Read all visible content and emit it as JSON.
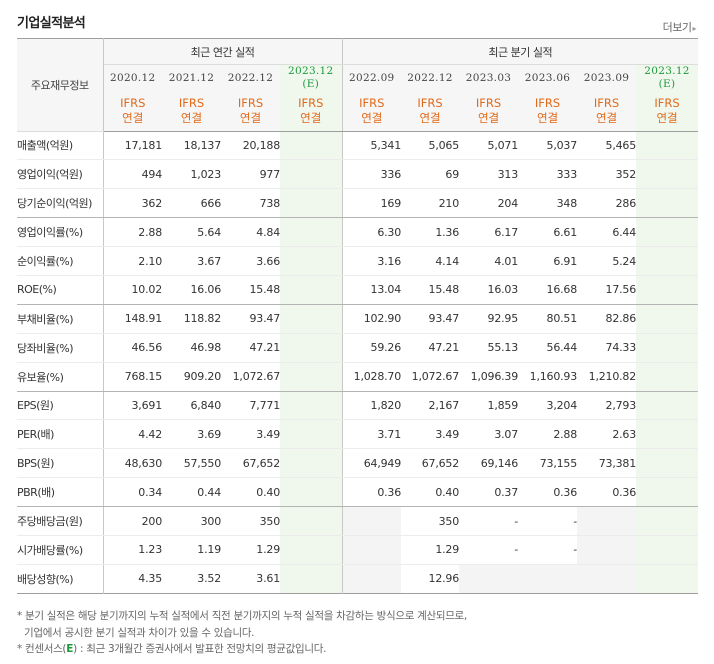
{
  "title": "기업실적분석",
  "more": {
    "label": "더보기",
    "icon": "chevron-right-icon"
  },
  "corner_label": "주요재무정보",
  "annual_group": "최근 연간 실적",
  "quarter_group": "최근 분기 실적",
  "periods": [
    {
      "date": "2020.12",
      "estimate": false
    },
    {
      "date": "2021.12",
      "estimate": false
    },
    {
      "date": "2022.12",
      "estimate": false
    },
    {
      "date": "2023.12",
      "estimate": true,
      "estimate_label": "(E)"
    },
    {
      "date": "2022.09",
      "estimate": false
    },
    {
      "date": "2022.12",
      "estimate": false
    },
    {
      "date": "2023.03",
      "estimate": false
    },
    {
      "date": "2023.06",
      "estimate": false
    },
    {
      "date": "2023.09",
      "estimate": false
    },
    {
      "date": "2023.12",
      "estimate": true,
      "estimate_label": "(E)"
    }
  ],
  "standard": {
    "line1": "IFRS",
    "line2": "연결"
  },
  "rows": [
    {
      "label": "매출액(억원)",
      "values": [
        "17,181",
        "18,137",
        "20,188",
        "",
        "5,341",
        "5,065",
        "5,071",
        "5,037",
        "5,465",
        ""
      ]
    },
    {
      "label": "영업이익(억원)",
      "values": [
        "494",
        "1,023",
        "977",
        "",
        "336",
        "69",
        "313",
        "333",
        "352",
        ""
      ]
    },
    {
      "label": "당기순이익(억원)",
      "values": [
        "362",
        "666",
        "738",
        "",
        "169",
        "210",
        "204",
        "348",
        "286",
        ""
      ]
    },
    {
      "label": "영업이익률(%)",
      "values": [
        "2.88",
        "5.64",
        "4.84",
        "",
        "6.30",
        "1.36",
        "6.17",
        "6.61",
        "6.44",
        ""
      ]
    },
    {
      "label": "순이익률(%)",
      "values": [
        "2.10",
        "3.67",
        "3.66",
        "",
        "3.16",
        "4.14",
        "4.01",
        "6.91",
        "5.24",
        ""
      ]
    },
    {
      "label": "ROE(%)",
      "values": [
        "10.02",
        "16.06",
        "15.48",
        "",
        "13.04",
        "15.48",
        "16.03",
        "16.68",
        "17.56",
        ""
      ]
    },
    {
      "label": "부채비율(%)",
      "values": [
        "148.91",
        "118.82",
        "93.47",
        "",
        "102.90",
        "93.47",
        "92.95",
        "80.51",
        "82.86",
        ""
      ]
    },
    {
      "label": "당좌비율(%)",
      "values": [
        "46.56",
        "46.98",
        "47.21",
        "",
        "59.26",
        "47.21",
        "55.13",
        "56.44",
        "74.33",
        ""
      ]
    },
    {
      "label": "유보율(%)",
      "values": [
        "768.15",
        "909.20",
        "1,072.67",
        "",
        "1,028.70",
        "1,072.67",
        "1,096.39",
        "1,160.93",
        "1,210.82",
        ""
      ]
    },
    {
      "label": "EPS(원)",
      "values": [
        "3,691",
        "6,840",
        "7,771",
        "",
        "1,820",
        "2,167",
        "1,859",
        "3,204",
        "2,793",
        ""
      ]
    },
    {
      "label": "PER(배)",
      "values": [
        "4.42",
        "3.69",
        "3.49",
        "",
        "3.71",
        "3.49",
        "3.07",
        "2.88",
        "2.63",
        ""
      ]
    },
    {
      "label": "BPS(원)",
      "values": [
        "48,630",
        "57,550",
        "67,652",
        "",
        "64,949",
        "67,652",
        "69,146",
        "73,155",
        "73,381",
        ""
      ]
    },
    {
      "label": "PBR(배)",
      "values": [
        "0.34",
        "0.44",
        "0.40",
        "",
        "0.36",
        "0.40",
        "0.37",
        "0.36",
        "0.36",
        ""
      ]
    },
    {
      "label": "주당배당금(원)",
      "values": [
        "200",
        "300",
        "350",
        "",
        "",
        "350",
        "-",
        "-",
        "",
        ""
      ]
    },
    {
      "label": "시가배당률(%)",
      "values": [
        "1.23",
        "1.19",
        "1.29",
        "",
        "",
        "1.29",
        "-",
        "-",
        "",
        ""
      ]
    },
    {
      "label": "배당성향(%)",
      "values": [
        "4.35",
        "3.52",
        "3.61",
        "",
        "",
        "12.96",
        "",
        "",
        "",
        ""
      ]
    }
  ],
  "group_ends": [
    2,
    5,
    8,
    12
  ],
  "gray_cells": [
    [
      13,
      4
    ],
    [
      13,
      8
    ],
    [
      13,
      9
    ],
    [
      14,
      4
    ],
    [
      14,
      8
    ],
    [
      14,
      9
    ],
    [
      15,
      4
    ],
    [
      15,
      6
    ],
    [
      15,
      7
    ],
    [
      15,
      8
    ],
    [
      15,
      9
    ]
  ],
  "notes": {
    "line1": "* 분기 실적은 해당 분기까지의 누적 실적에서 직전 분기까지의 누적 실적을 차감하는 방식으로 계산되므로,",
    "line2": "기업에서 공시한 분기 실적과 차이가 있을 수 있습니다.",
    "line3_pre": "* 컨센서스(",
    "line3_e": "E",
    "line3_post": ") : 최근 3개월간 증권사에서 발표한 전망치의 평균값입니다."
  },
  "colors": {
    "ifrs": "#e06a1a",
    "estimate_text": "#1b9a3a",
    "estimate_bg": "#f0f8ee"
  }
}
